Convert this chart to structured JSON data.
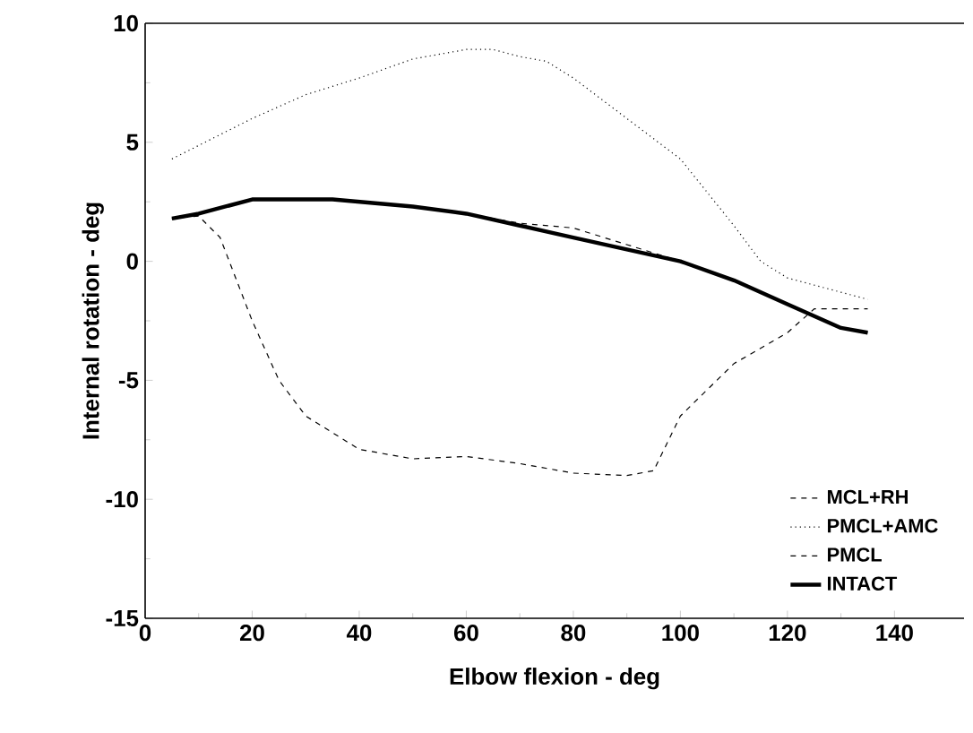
{
  "chart_data": {
    "type": "line",
    "xlabel": "Elbow flexion - deg",
    "ylabel": "Internal rotation - deg",
    "xlim": [
      0,
      153
    ],
    "ylim": [
      -15,
      10
    ],
    "xticks": [
      0,
      20,
      40,
      60,
      80,
      100,
      120,
      140
    ],
    "yticks": [
      -15,
      -10,
      -5,
      0,
      5,
      10
    ],
    "legend": "bottom right",
    "grid": false,
    "series": [
      {
        "name": "MCL+RH",
        "color": "#000000",
        "line_style": "dashed",
        "x": [
          5,
          10,
          14,
          20,
          25,
          30,
          40,
          50,
          60,
          70,
          80,
          90,
          95,
          100,
          110,
          120,
          125,
          135
        ],
        "values": [
          1.8,
          1.9,
          1.0,
          -2.5,
          -5.0,
          -6.5,
          -7.9,
          -8.3,
          -8.2,
          -8.5,
          -8.9,
          -9.0,
          -8.8,
          -6.5,
          -4.3,
          -3.0,
          -2.0,
          -2.0
        ]
      },
      {
        "name": "PMCL+AMC",
        "color": "#000000",
        "line_style": "dotted",
        "x": [
          5,
          20,
          30,
          40,
          50,
          60,
          65,
          70,
          75,
          80,
          90,
          100,
          110,
          115,
          120,
          130,
          135
        ],
        "values": [
          4.3,
          6.0,
          7.0,
          7.7,
          8.5,
          8.9,
          8.9,
          8.6,
          8.4,
          7.7,
          6.0,
          4.3,
          1.5,
          0.0,
          -0.7,
          -1.3,
          -1.6
        ]
      },
      {
        "name": "PMCL",
        "color": "#000000",
        "line_style": "dashed",
        "x": [
          5,
          10,
          20,
          35,
          50,
          60,
          70,
          80,
          90,
          100,
          110,
          120,
          125,
          130,
          135
        ],
        "values": [
          1.8,
          2.0,
          2.6,
          2.6,
          2.3,
          2.0,
          1.6,
          1.4,
          0.7,
          0.0,
          -0.8,
          -1.8,
          -2.3,
          -2.8,
          -3.0
        ]
      },
      {
        "name": "INTACT",
        "color": "#000000",
        "line_style": "solid",
        "x": [
          5,
          10,
          20,
          35,
          50,
          60,
          70,
          80,
          90,
          100,
          110,
          120,
          125,
          130,
          135
        ],
        "values": [
          1.8,
          2.0,
          2.6,
          2.6,
          2.3,
          2.0,
          1.5,
          1.0,
          0.5,
          0.0,
          -0.8,
          -1.8,
          -2.3,
          -2.8,
          -3.0
        ]
      }
    ]
  }
}
